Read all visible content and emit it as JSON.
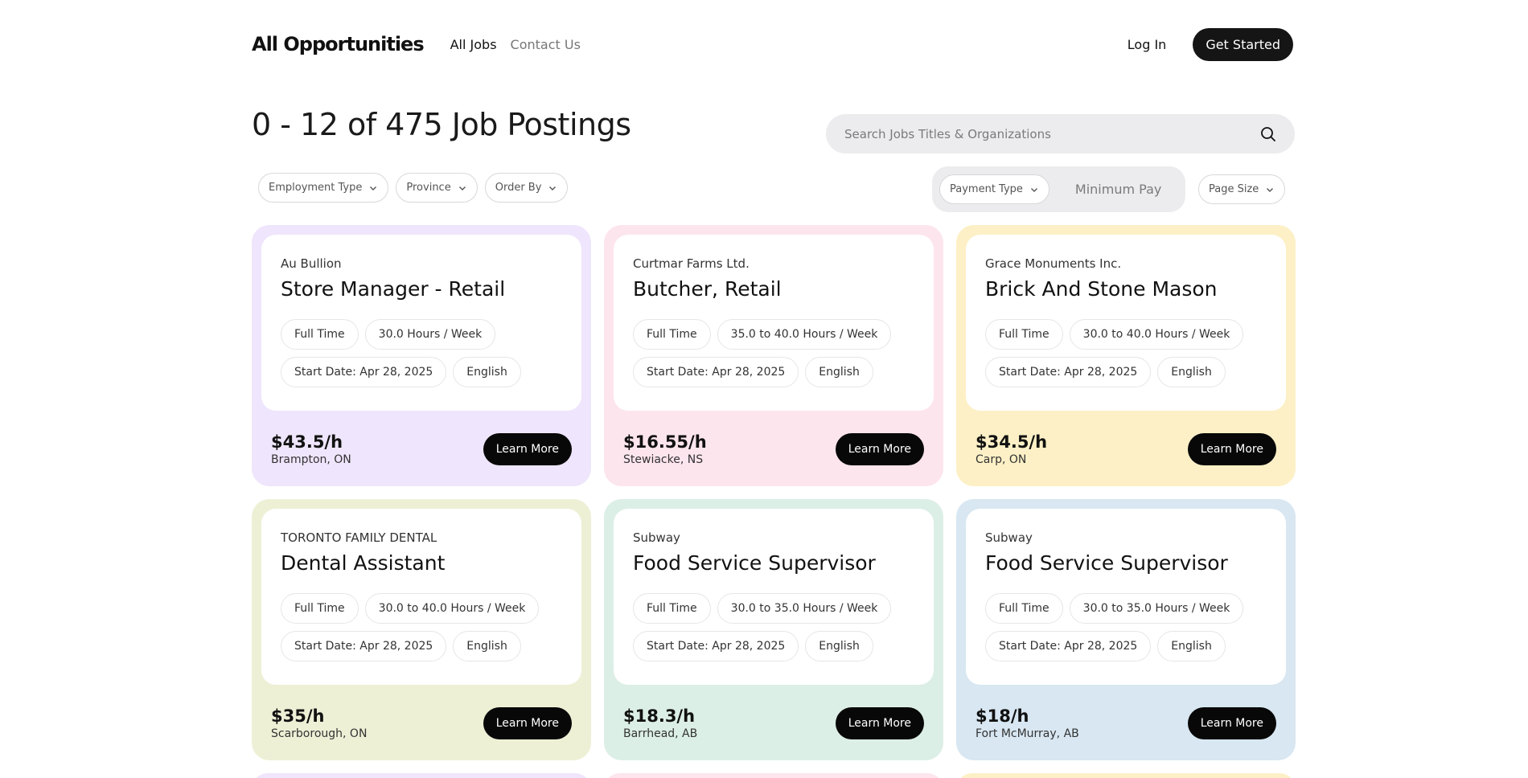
{
  "header": {
    "brand": "All Opportunities",
    "nav": [
      {
        "label": "All Jobs"
      },
      {
        "label": "Contact Us"
      }
    ],
    "login_label": "Log In",
    "cta_label": "Get Started"
  },
  "results_title": "0 - 12 of 475 Job Postings",
  "search": {
    "placeholder": "Search Jobs Titles & Organizations",
    "icon": "search-icon"
  },
  "filters": {
    "employment_type": "Employment Type",
    "province": "Province",
    "order_by": "Order By",
    "payment_type": "Payment Type",
    "minimum_pay_placeholder": "Minimum Pay",
    "page_size": "Page Size"
  },
  "card_button_label": "Learn More",
  "colors": {
    "lavender": "#efe5fc",
    "pink": "#fde5ee",
    "yellow": "#fdf0c6",
    "olive": "#eef0d6",
    "mint": "#dcefe6",
    "blue": "#d8e7f2"
  },
  "jobs": [
    {
      "company": "Au Bullion",
      "title": "Store Manager - Retail",
      "type": "Full Time",
      "hours": "30.0 Hours / Week",
      "start": "Start Date: Apr 28, 2025",
      "language": "English",
      "pay": "$43.5/h",
      "location": "Brampton, ON",
      "color": "#efe5fc"
    },
    {
      "company": "Curtmar Farms Ltd.",
      "title": "Butcher, Retail",
      "type": "Full Time",
      "hours": "35.0 to 40.0 Hours / Week",
      "start": "Start Date: Apr 28, 2025",
      "language": "English",
      "pay": "$16.55/h",
      "location": "Stewiacke, NS",
      "color": "#fde5ee"
    },
    {
      "company": "Grace Monuments Inc.",
      "title": "Brick And Stone Mason",
      "type": "Full Time",
      "hours": "30.0 to 40.0 Hours / Week",
      "start": "Start Date: Apr 28, 2025",
      "language": "English",
      "pay": "$34.5/h",
      "location": "Carp, ON",
      "color": "#fdf0c6"
    },
    {
      "company": "TORONTO FAMILY DENTAL",
      "title": "Dental Assistant",
      "type": "Full Time",
      "hours": "30.0 to 40.0 Hours / Week",
      "start": "Start Date: Apr 28, 2025",
      "language": "English",
      "pay": "$35/h",
      "location": "Scarborough, ON",
      "color": "#eef0d6"
    },
    {
      "company": "Subway",
      "title": "Food Service Supervisor",
      "type": "Full Time",
      "hours": "30.0 to 35.0 Hours / Week",
      "start": "Start Date: Apr 28, 2025",
      "language": "English",
      "pay": "$18.3/h",
      "location": "Barrhead, AB",
      "color": "#dcefe6"
    },
    {
      "company": "Subway",
      "title": "Food Service Supervisor",
      "type": "Full Time",
      "hours": "30.0 to 35.0 Hours / Week",
      "start": "Start Date: Apr 28, 2025",
      "language": "English",
      "pay": "$18/h",
      "location": "Fort McMurray, AB",
      "color": "#d8e7f2"
    }
  ]
}
